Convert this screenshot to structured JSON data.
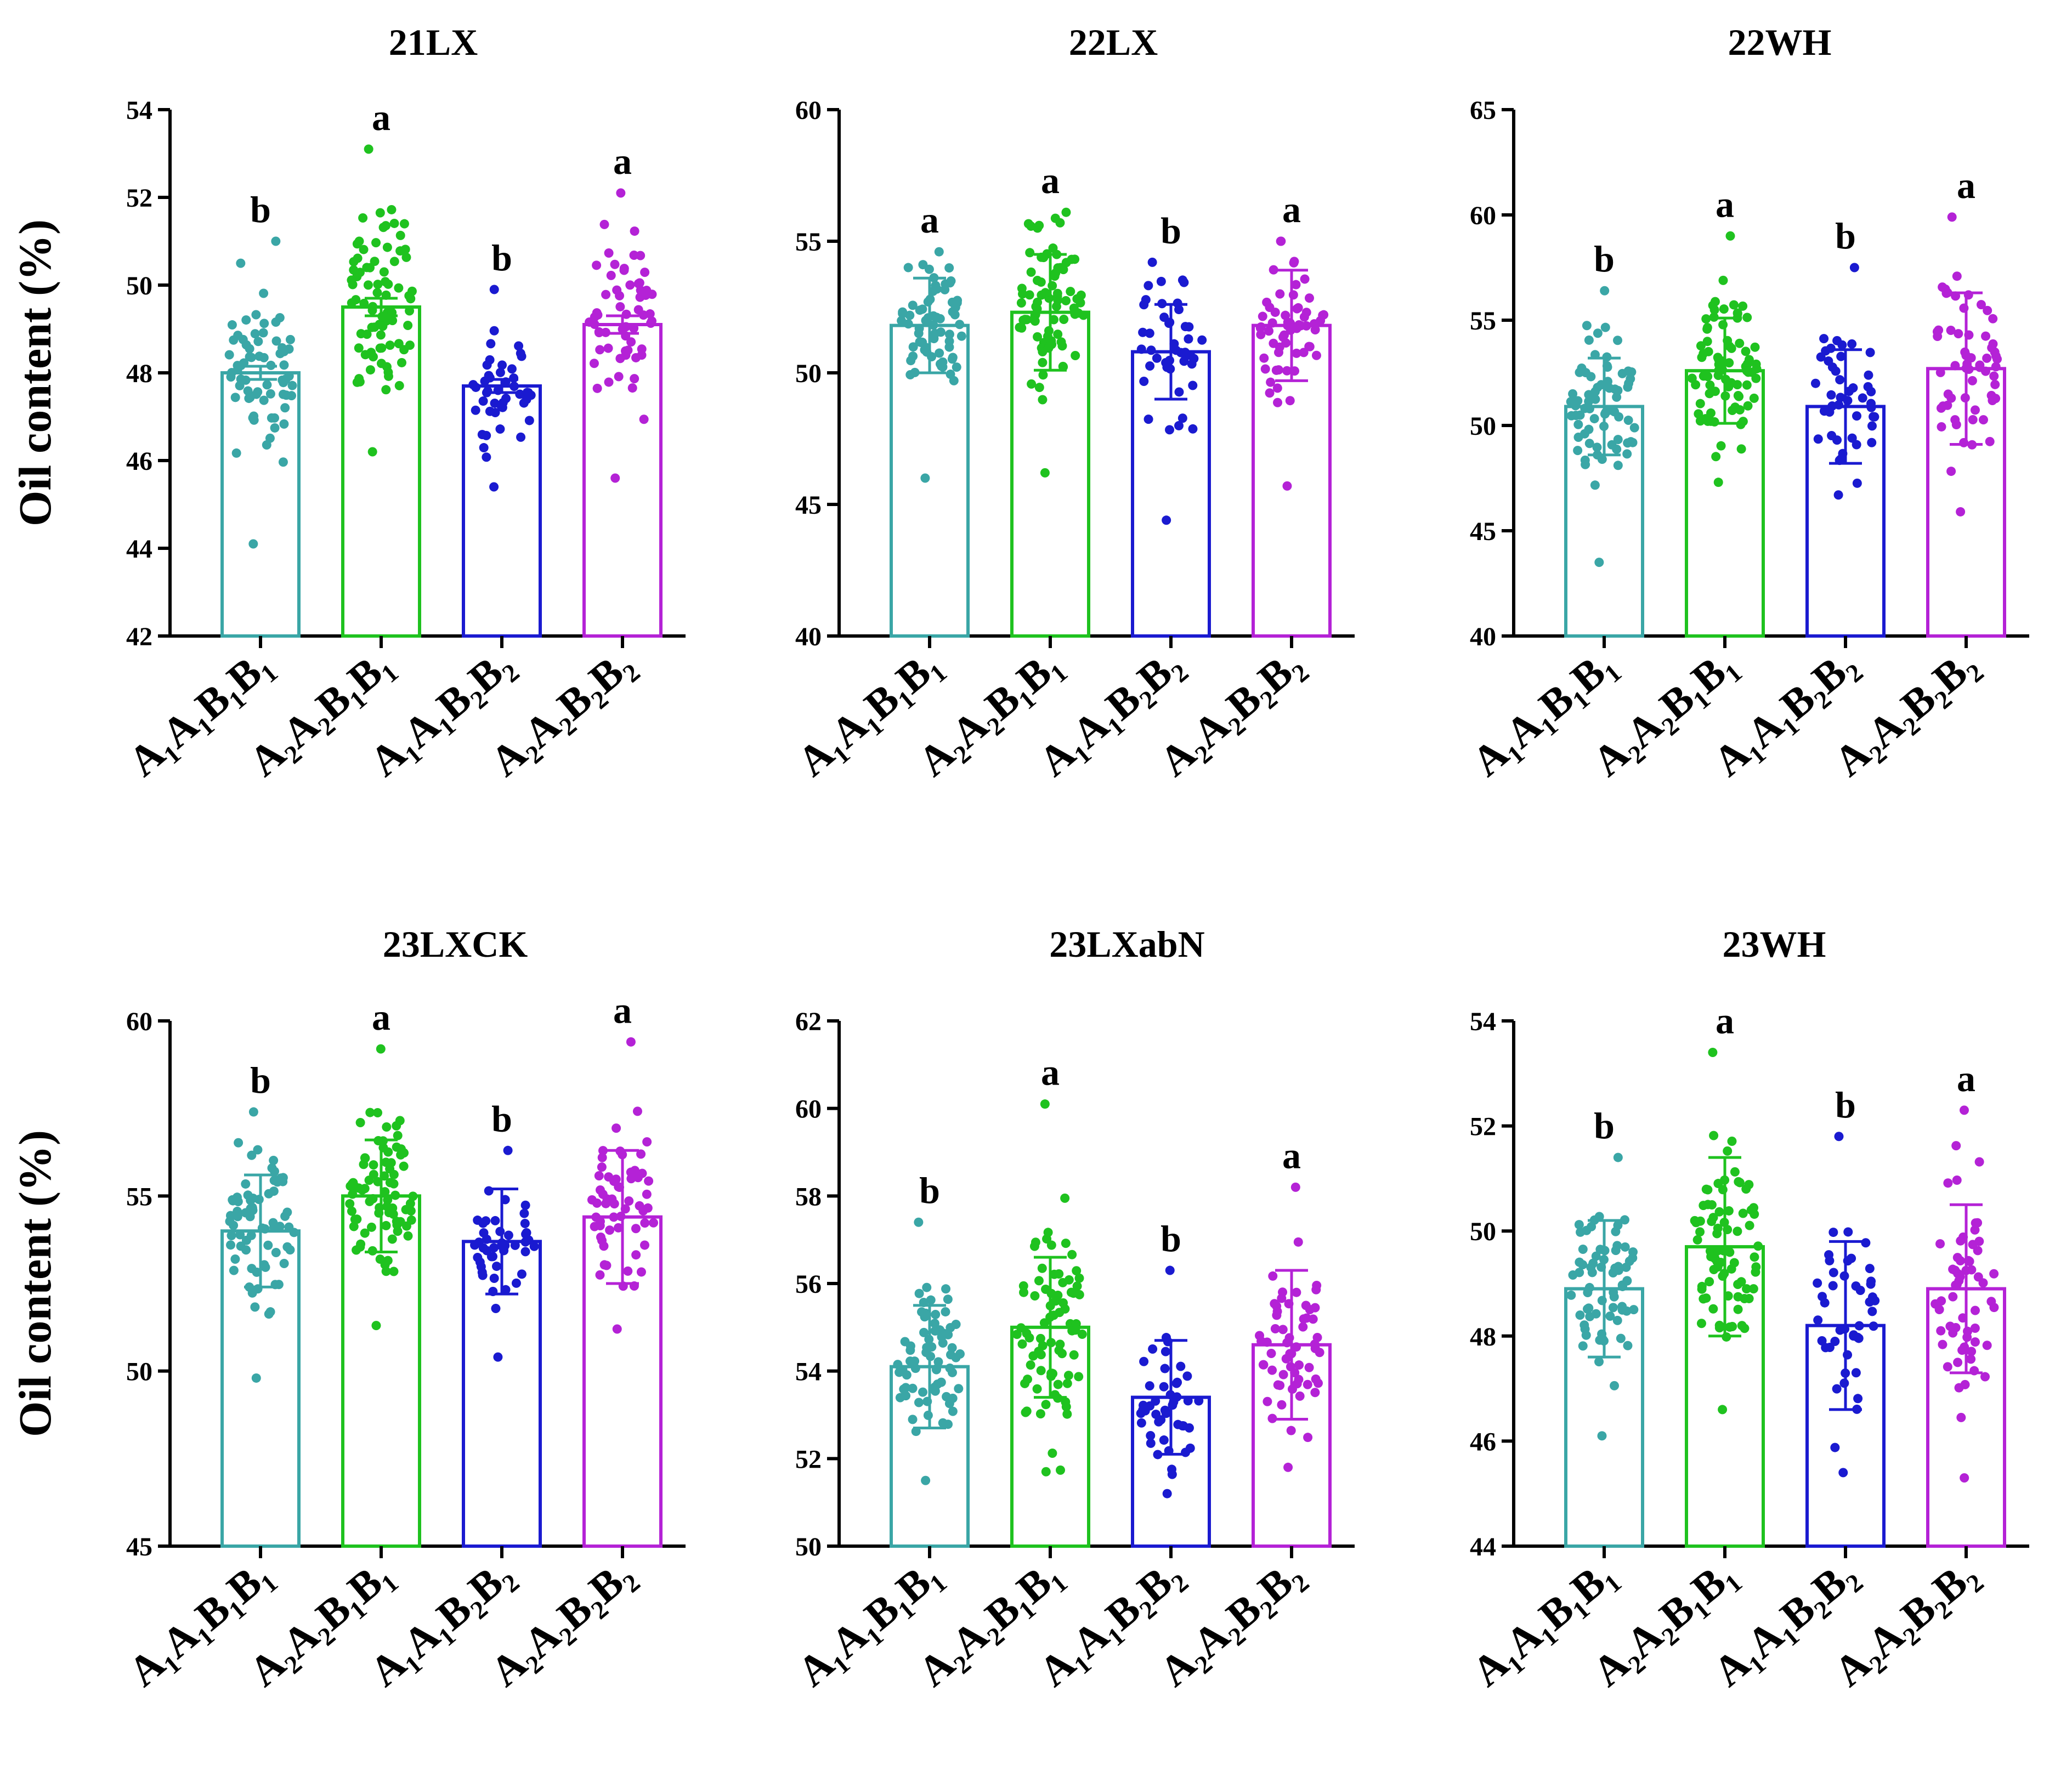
{
  "figure": {
    "ylabel": "Oil content (%)",
    "category_labels": [
      "A₁A₁B₁B₁",
      "A₂A₂B₁B₁",
      "A₁A₁B₂B₂",
      "A₂A₂B₂B₂"
    ],
    "colors": [
      "#3aa6a6",
      "#1fc21f",
      "#1a1ad0",
      "#b422d6"
    ]
  },
  "chart_data": [
    {
      "type": "bar",
      "title": "21LX",
      "categories": [
        "A₁A₁B₁B₁",
        "A₂A₂B₁B₁",
        "A₁A₁B₂B₂",
        "A₂A₂B₂B₂"
      ],
      "values": [
        48.0,
        49.5,
        47.7,
        49.1
      ],
      "error": [
        0.15,
        0.2,
        0.15,
        0.2
      ],
      "significance": [
        "b",
        "a",
        "b",
        "a"
      ],
      "point_range": [
        [
          44.1,
          51.0
        ],
        [
          46.2,
          53.1
        ],
        [
          45.4,
          49.9
        ],
        [
          45.6,
          52.1
        ]
      ],
      "point_counts": [
        70,
        80,
        45,
        60
      ],
      "ylim": [
        42,
        54
      ],
      "yticks": [
        42,
        44,
        46,
        48,
        50,
        52,
        54
      ],
      "ylabel": "Oil content (%)"
    },
    {
      "type": "bar",
      "title": "22LX",
      "categories": [
        "A₁A₁B₁B₁",
        "A₂A₂B₁B₁",
        "A₁A₁B₂B₂",
        "A₂A₂B₂B₂"
      ],
      "values": [
        51.8,
        52.3,
        50.8,
        51.8
      ],
      "error": [
        1.8,
        2.2,
        1.8,
        2.1
      ],
      "significance": [
        "a",
        "a",
        "b",
        "a"
      ],
      "point_range": [
        [
          46.0,
          54.6
        ],
        [
          46.2,
          56.1
        ],
        [
          44.4,
          54.2
        ],
        [
          45.7,
          55.0
        ]
      ],
      "point_counts": [
        70,
        80,
        45,
        60
      ],
      "ylim": [
        40,
        60
      ],
      "yticks": [
        40,
        45,
        50,
        55,
        60
      ]
    },
    {
      "type": "bar",
      "title": "22WH",
      "categories": [
        "A₁A₁B₁B₁",
        "A₂A₂B₁B₁",
        "A₁A₁B₂B₂",
        "A₂A₂B₂B₂"
      ],
      "values": [
        50.9,
        52.6,
        50.9,
        52.7
      ],
      "error": [
        2.3,
        2.5,
        2.7,
        3.6
      ],
      "significance": [
        "b",
        "a",
        "b",
        "a"
      ],
      "point_range": [
        [
          43.5,
          56.4
        ],
        [
          47.3,
          59.0
        ],
        [
          46.7,
          57.5
        ],
        [
          45.9,
          59.9
        ]
      ],
      "point_counts": [
        70,
        80,
        45,
        60
      ],
      "ylim": [
        40,
        65
      ],
      "yticks": [
        40,
        45,
        50,
        55,
        60,
        65
      ]
    },
    {
      "type": "bar",
      "title": "23LXCK",
      "categories": [
        "A₁A₁B₁B₁",
        "A₂A₂B₁B₁",
        "A₁A₁B₂B₂",
        "A₂A₂B₂B₂"
      ],
      "values": [
        54.0,
        55.0,
        53.7,
        54.4
      ],
      "error": [
        1.6,
        1.6,
        1.5,
        1.9
      ],
      "significance": [
        "b",
        "a",
        "b",
        "a"
      ],
      "point_range": [
        [
          49.8,
          57.4
        ],
        [
          51.3,
          59.2
        ],
        [
          50.4,
          56.3
        ],
        [
          51.2,
          59.4
        ]
      ],
      "point_counts": [
        70,
        80,
        45,
        60
      ],
      "ylim": [
        45,
        60
      ],
      "yticks": [
        45,
        50,
        55,
        60
      ],
      "ylabel": "Oil content (%)"
    },
    {
      "type": "bar",
      "title": "23LXabN",
      "categories": [
        "A₁A₁B₁B₁",
        "A₂A₂B₁B₁",
        "A₁A₁B₂B₂",
        "A₂A₂B₂B₂"
      ],
      "values": [
        54.1,
        55.0,
        53.4,
        54.6
      ],
      "error": [
        1.4,
        1.6,
        1.3,
        1.7
      ],
      "significance": [
        "b",
        "a",
        "b",
        "a"
      ],
      "point_range": [
        [
          51.5,
          57.4
        ],
        [
          51.7,
          60.1
        ],
        [
          51.2,
          56.3
        ],
        [
          51.8,
          58.2
        ]
      ],
      "point_counts": [
        70,
        80,
        45,
        60
      ],
      "ylim": [
        50,
        62
      ],
      "yticks": [
        50,
        52,
        54,
        56,
        58,
        60,
        62
      ]
    },
    {
      "type": "bar",
      "title": "23WH",
      "categories": [
        "A₁A₁B₁B₁",
        "A₂A₂B₁B₁",
        "A₁A₁B₂B₂",
        "A₂A₂B₂B₂"
      ],
      "values": [
        48.9,
        49.7,
        48.2,
        48.9
      ],
      "error": [
        1.3,
        1.7,
        1.6,
        1.6
      ],
      "significance": [
        "b",
        "a",
        "b",
        "a"
      ],
      "point_range": [
        [
          46.1,
          51.4
        ],
        [
          46.6,
          53.4
        ],
        [
          45.4,
          51.8
        ],
        [
          45.3,
          52.3
        ]
      ],
      "point_counts": [
        70,
        80,
        45,
        60
      ],
      "ylim": [
        44,
        54
      ],
      "yticks": [
        44,
        46,
        48,
        50,
        52,
        54
      ]
    }
  ]
}
